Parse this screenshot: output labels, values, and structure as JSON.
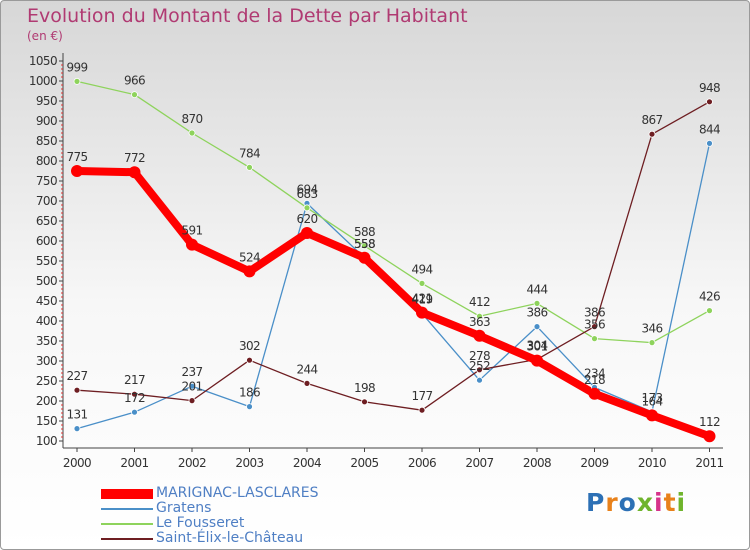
{
  "title": "Evolution du Montant de la Dette par Habitant",
  "subtitle": "(en €)",
  "logo": {
    "text": "Proxiti",
    "colors": [
      "#2c70b5",
      "#e8811a",
      "#2c70b5",
      "#6fb42c",
      "#d6338a",
      "#e8811a",
      "#6fb42c"
    ]
  },
  "chart_data": {
    "type": "line",
    "title": "Evolution du Montant de la Dette par Habitant",
    "subtitle": "(en €)",
    "x": [
      "2000",
      "2001",
      "2002",
      "2003",
      "2004",
      "2005",
      "2006",
      "2007",
      "2008",
      "2009",
      "2010",
      "2011"
    ],
    "yticks": [
      100,
      150,
      200,
      250,
      300,
      350,
      400,
      450,
      500,
      550,
      600,
      650,
      700,
      750,
      800,
      850,
      900,
      950,
      1000,
      1050
    ],
    "ylim": [
      100,
      1050
    ],
    "grid": false,
    "legend_position": "bottom-left",
    "series": [
      {
        "name": "MARIGNAC-LASCLARES",
        "color": "#ff0000",
        "values": [
          775,
          772,
          591,
          524,
          620,
          558,
          421,
          363,
          301,
          218,
          164,
          112
        ],
        "labels": [
          "775",
          "772",
          "591",
          "524",
          "620",
          "558",
          "421",
          "363",
          "301",
          "218",
          "164",
          "112"
        ]
      },
      {
        "name": "Gratens",
        "color": "#4a8fc8",
        "values": [
          131,
          172,
          237,
          186,
          694,
          558,
          419,
          252,
          386,
          234,
          173,
          844
        ],
        "labels": [
          "131",
          "172",
          "237",
          "186",
          "694",
          "558",
          "419",
          "252",
          "386",
          "234",
          "173",
          "844"
        ]
      },
      {
        "name": "Le Fousseret",
        "color": "#8ed35c",
        "values": [
          999,
          966,
          870,
          784,
          683,
          588,
          494,
          412,
          444,
          356,
          346,
          426
        ],
        "labels": [
          "999",
          "966",
          "870",
          "784",
          "683",
          "588",
          "494",
          "412",
          "444",
          "356",
          "346",
          "426"
        ]
      },
      {
        "name": "Saint-Élix-le-Château",
        "color": "#6e1e22",
        "values": [
          227,
          217,
          201,
          302,
          244,
          198,
          177,
          278,
          304,
          386,
          867,
          948
        ],
        "labels": [
          "227",
          "217",
          "201",
          "302",
          "244",
          "198",
          "177",
          "278",
          "304",
          "386",
          "867",
          "948"
        ]
      }
    ]
  }
}
